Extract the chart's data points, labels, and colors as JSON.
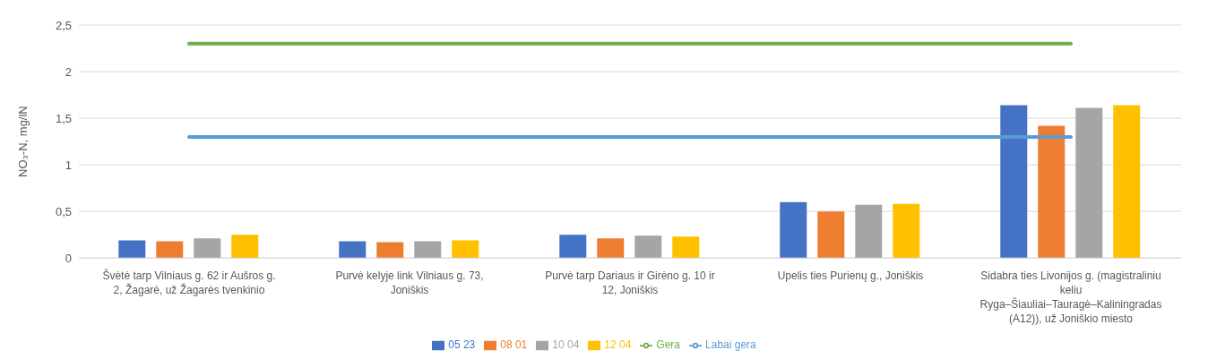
{
  "chart_data": {
    "type": "bar",
    "ylabel": "NO₃-N, mg/lN",
    "categories": [
      "Švėtė tarp Vilniaus g. 62 ir Aušros g. 2, Žagarė, už Žagarės tvenkinio",
      "Purvė kelyje link Vilniaus g. 73, Joniškis",
      "Purvė tarp Dariaus ir Girėno g. 10 ir 12, Joniškis",
      "Upelis ties Purienų g., Joniškis",
      "Sidabra ties Livonijos g. (magistraliniu keliu Ryga–Šiauliai–Tauragė–Kaliningradas (A12)), už Joniškio miesto"
    ],
    "series": [
      {
        "name": "05 23",
        "color": "#4472c4",
        "values": [
          0.19,
          0.18,
          0.25,
          0.6,
          1.64
        ]
      },
      {
        "name": "08 01",
        "color": "#ed7d31",
        "values": [
          0.18,
          0.17,
          0.21,
          0.5,
          1.42
        ]
      },
      {
        "name": "10 04",
        "color": "#a5a5a5",
        "values": [
          0.21,
          0.18,
          0.24,
          0.57,
          1.61
        ]
      },
      {
        "name": "12 04",
        "color": "#ffc000",
        "values": [
          0.25,
          0.19,
          0.23,
          0.58,
          1.64
        ]
      },
      {
        "name": "Labai gera",
        "type": "line",
        "color": "#5b9bd5",
        "values": [
          1.3,
          1.3,
          1.3,
          1.3,
          1.3
        ]
      },
      {
        "name": "Gera",
        "type": "line",
        "color": "#70ad47",
        "values": [
          2.3,
          2.3,
          2.3,
          2.3,
          2.3
        ]
      }
    ],
    "ylim": [
      0,
      2.5
    ],
    "yticks": [
      0,
      {
        "value": 0.5,
        "label": "0,5"
      },
      1,
      {
        "value": 1.5,
        "label": "1,5"
      },
      2,
      {
        "value": 2.5,
        "label": "2,5"
      }
    ],
    "grid": "y",
    "legend": "bottom"
  }
}
